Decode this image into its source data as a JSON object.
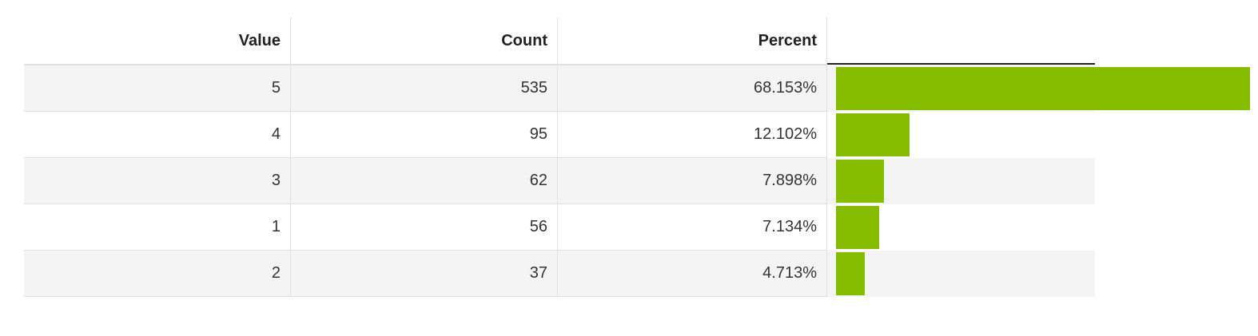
{
  "table": {
    "headers": [
      "Value",
      "Count",
      "Percent"
    ],
    "rows": [
      {
        "value": 5,
        "count": 535,
        "percent": 68.153,
        "percent_label": "68.153%"
      },
      {
        "value": 4,
        "count": 95,
        "percent": 12.102,
        "percent_label": "12.102%"
      },
      {
        "value": 3,
        "count": 62,
        "percent": 7.898,
        "percent_label": "7.898%"
      },
      {
        "value": 1,
        "count": 56,
        "percent": 7.134,
        "percent_label": "7.134%"
      },
      {
        "value": 2,
        "count": 37,
        "percent": 4.713,
        "percent_label": "4.713%"
      }
    ]
  }
}
